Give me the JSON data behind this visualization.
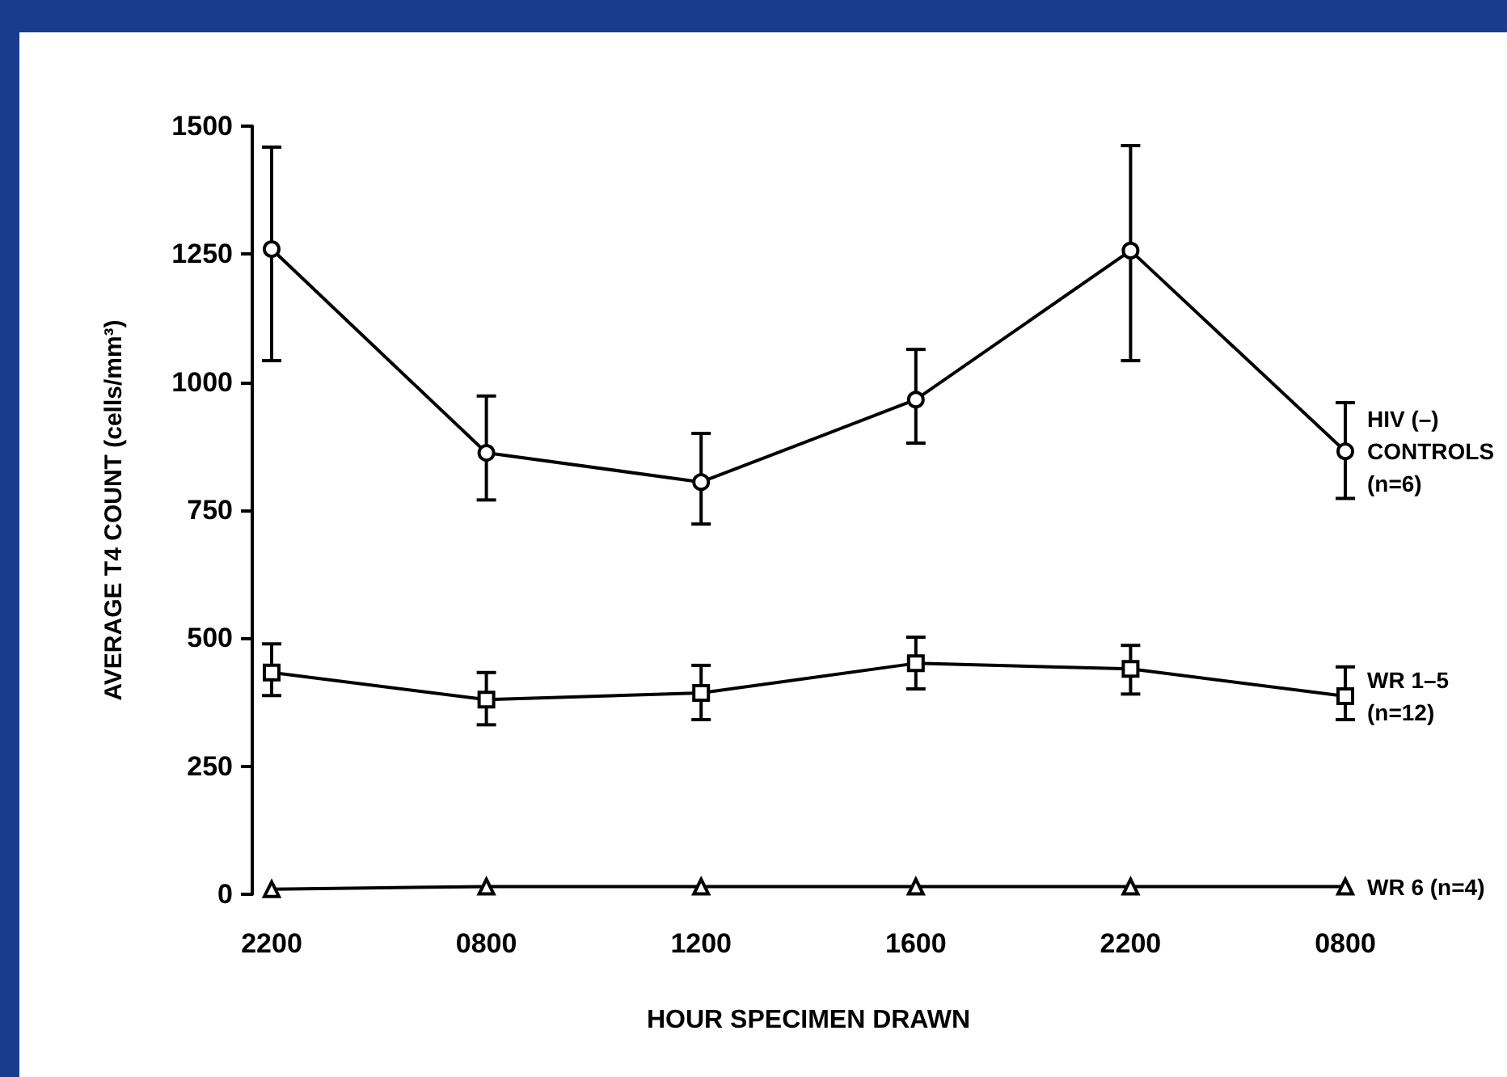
{
  "chart_data": {
    "type": "line",
    "xlabel": "HOUR SPECIMEN DRAWN",
    "ylabel": "AVERAGE T4 COUNT (cells/mm³)",
    "categories": [
      "2200",
      "0800",
      "1200",
      "1600",
      "2200",
      "0800"
    ],
    "ylim": [
      0,
      1500
    ],
    "yticks": [
      0,
      250,
      500,
      750,
      1000,
      1250,
      1500
    ],
    "grid": false,
    "legend": false,
    "line_style": "solid",
    "series": [
      {
        "name": "HIV (–) CONTROLS (n=6)",
        "color": "#000000",
        "marker": "circle",
        "values": [
          1260,
          862,
          805,
          966,
          1257,
          865
        ],
        "errors": [
          [
            1042,
            1459
          ],
          [
            770,
            973
          ],
          [
            723,
            900
          ],
          [
            881,
            1064
          ],
          [
            1042,
            1462
          ],
          [
            773,
            960
          ]
        ]
      },
      {
        "name": "WR 1–5 (n=12)",
        "color": "#000000",
        "marker": "square",
        "values": [
          433,
          380,
          393,
          451,
          440,
          387
        ],
        "errors": [
          [
            388,
            489
          ],
          [
            331,
            433
          ],
          [
            341,
            447
          ],
          [
            401,
            502
          ],
          [
            391,
            486
          ],
          [
            341,
            444
          ]
        ]
      },
      {
        "name": "WR 6 (n=4)",
        "color": "#000000",
        "marker": "triangle",
        "values": [
          10,
          15,
          15,
          15,
          15,
          15
        ]
      }
    ]
  }
}
